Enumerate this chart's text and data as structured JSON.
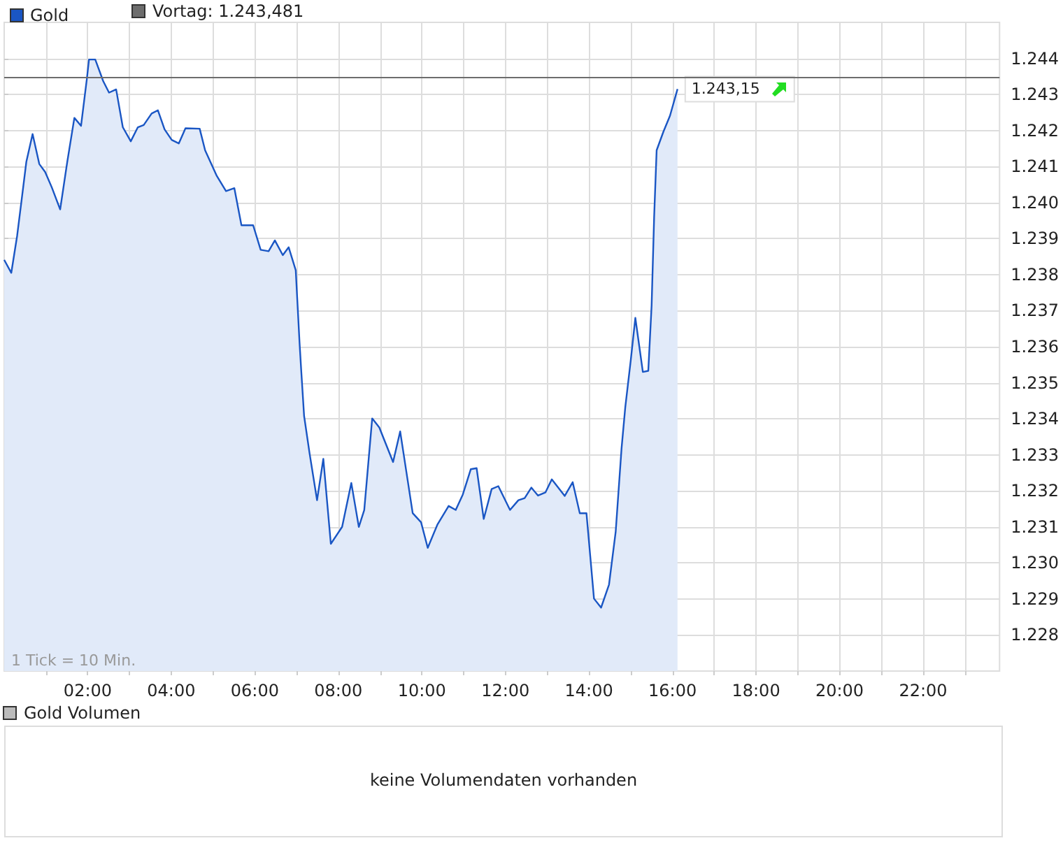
{
  "chart_data": {
    "type": "area",
    "x": [
      0.0,
      0.17,
      0.31,
      0.42,
      0.53,
      0.68,
      0.84,
      0.98,
      1.14,
      1.34,
      1.51,
      1.68,
      1.84,
      1.98,
      2.03,
      2.18,
      2.37,
      2.51,
      2.68,
      2.84,
      3.03,
      3.2,
      3.34,
      3.53,
      3.68,
      3.84,
      4.01,
      4.18,
      4.34,
      4.68,
      4.81,
      5.09,
      5.31,
      5.51,
      5.68,
      5.96,
      6.14,
      6.33,
      6.48,
      6.67,
      6.81,
      6.98,
      7.07,
      7.11,
      7.18,
      7.31,
      7.49,
      7.64,
      7.82,
      8.09,
      8.31,
      8.49,
      8.62,
      8.81,
      8.98,
      9.31,
      9.48,
      9.78,
      9.98,
      10.14,
      10.37,
      10.64,
      10.81,
      10.98,
      11.17,
      11.31,
      11.48,
      11.67,
      11.83,
      12.11,
      12.31,
      12.46,
      12.62,
      12.78,
      12.96,
      13.11,
      13.42,
      13.61,
      13.78,
      13.94,
      14.12,
      14.29,
      14.48,
      14.64,
      14.78,
      14.87,
      15.0,
      15.11,
      15.29,
      15.42,
      15.5,
      15.56,
      15.62,
      15.78,
      15.94,
      16.12
    ],
    "series": [
      {
        "name": "Gold",
        "color": "#1a56c4",
        "values": [
          1238.41,
          1238.05,
          1239.08,
          1240.1,
          1241.13,
          1241.9,
          1241.07,
          1240.85,
          1240.42,
          1239.81,
          1241.13,
          1242.35,
          1242.13,
          1243.44,
          1243.97,
          1243.97,
          1243.37,
          1243.05,
          1243.14,
          1242.09,
          1241.7,
          1242.09,
          1242.15,
          1242.47,
          1242.56,
          1242.03,
          1241.74,
          1241.64,
          1242.06,
          1242.05,
          1241.45,
          1240.74,
          1240.32,
          1240.4,
          1239.37,
          1239.37,
          1238.69,
          1238.65,
          1238.95,
          1238.54,
          1238.76,
          1238.12,
          1236.13,
          1235.36,
          1234.08,
          1233.05,
          1231.74,
          1232.89,
          1230.53,
          1231.0,
          1232.22,
          1231.0,
          1231.47,
          1234.01,
          1233.76,
          1232.8,
          1233.65,
          1231.38,
          1231.13,
          1230.42,
          1231.06,
          1231.58,
          1231.47,
          1231.9,
          1232.6,
          1232.63,
          1231.22,
          1232.05,
          1232.13,
          1231.47,
          1231.74,
          1231.8,
          1232.09,
          1231.87,
          1231.96,
          1232.32,
          1231.86,
          1232.24,
          1231.38,
          1231.38,
          1229.01,
          1228.76,
          1229.4,
          1230.87,
          1233.18,
          1234.33,
          1235.62,
          1236.8,
          1235.3,
          1235.33,
          1237.15,
          1239.59,
          1241.45,
          1241.96,
          1242.41,
          1243.15
        ],
        "value_labels": [
          null,
          null,
          null,
          null,
          null,
          null,
          null,
          null,
          null,
          null,
          null,
          null,
          null,
          null,
          null,
          null,
          null,
          null,
          null,
          null,
          null,
          null,
          null,
          null,
          null,
          null,
          null,
          null,
          null,
          null,
          null,
          null,
          null,
          null,
          null,
          null,
          null,
          null,
          null,
          null,
          null,
          null,
          null,
          null,
          null,
          null,
          null,
          null,
          null,
          null,
          null,
          null,
          null,
          null,
          null,
          null,
          null,
          null,
          null,
          null,
          null,
          null,
          null,
          null,
          null,
          null,
          null,
          null,
          null,
          null,
          null,
          null,
          null,
          null,
          null,
          null,
          null,
          null,
          null,
          null,
          null,
          null,
          null,
          null,
          null,
          null,
          null,
          null,
          null,
          null,
          null,
          null,
          null,
          null,
          null,
          "1.243,15"
        ]
      }
    ],
    "xlim": [
      0,
      23.83
    ],
    "xticks": [
      {
        "value": 1,
        "label": null
      },
      {
        "value": 2,
        "label": "02:00"
      },
      {
        "value": 3,
        "label": null
      },
      {
        "value": 4,
        "label": "04:00"
      },
      {
        "value": 5,
        "label": null
      },
      {
        "value": 6,
        "label": "06:00"
      },
      {
        "value": 7,
        "label": null
      },
      {
        "value": 8,
        "label": "08:00"
      },
      {
        "value": 9,
        "label": null
      },
      {
        "value": 10,
        "label": "10:00"
      },
      {
        "value": 11,
        "label": null
      },
      {
        "value": 12,
        "label": "12:00"
      },
      {
        "value": 13,
        "label": null
      },
      {
        "value": 14,
        "label": "14:00"
      },
      {
        "value": 15,
        "label": null
      },
      {
        "value": 16,
        "label": "16:00"
      },
      {
        "value": 17,
        "label": null
      },
      {
        "value": 18,
        "label": "18:00"
      },
      {
        "value": 19,
        "label": null
      },
      {
        "value": 20,
        "label": "20:00"
      },
      {
        "value": 21,
        "label": null
      },
      {
        "value": 22,
        "label": "22:00"
      },
      {
        "value": 23,
        "label": null
      }
    ],
    "ylim": [
      1227,
      1245
    ],
    "yticks": [
      {
        "value": 1228,
        "label": "1.228"
      },
      {
        "value": 1229,
        "label": "1.229"
      },
      {
        "value": 1230,
        "label": "1.230"
      },
      {
        "value": 1231,
        "label": "1.231"
      },
      {
        "value": 1232,
        "label": "1.232"
      },
      {
        "value": 1233,
        "label": "1.233"
      },
      {
        "value": 1234,
        "label": "1.234"
      },
      {
        "value": 1235,
        "label": "1.235"
      },
      {
        "value": 1236,
        "label": "1.236"
      },
      {
        "value": 1237,
        "label": "1.237"
      },
      {
        "value": 1238,
        "label": "1.238"
      },
      {
        "value": 1239,
        "label": "1.239"
      },
      {
        "value": 1240,
        "label": "1.240"
      },
      {
        "value": 1241,
        "label": "1.241"
      },
      {
        "value": 1242,
        "label": "1.242"
      },
      {
        "value": 1243,
        "label": "1.243"
      },
      {
        "value": 1244,
        "label": "1.244"
      }
    ],
    "ref_lines": [
      {
        "axis": "y",
        "value": 1243.481,
        "label": "Vortag: 1.243,481",
        "color": "#6d6d6d"
      }
    ],
    "annotations": [
      "1 Tick = 10 Min.",
      "Gold Volumen",
      "keine Volumendaten vorhanden"
    ],
    "grid": true,
    "legend": "top left",
    "marker": "none"
  }
}
